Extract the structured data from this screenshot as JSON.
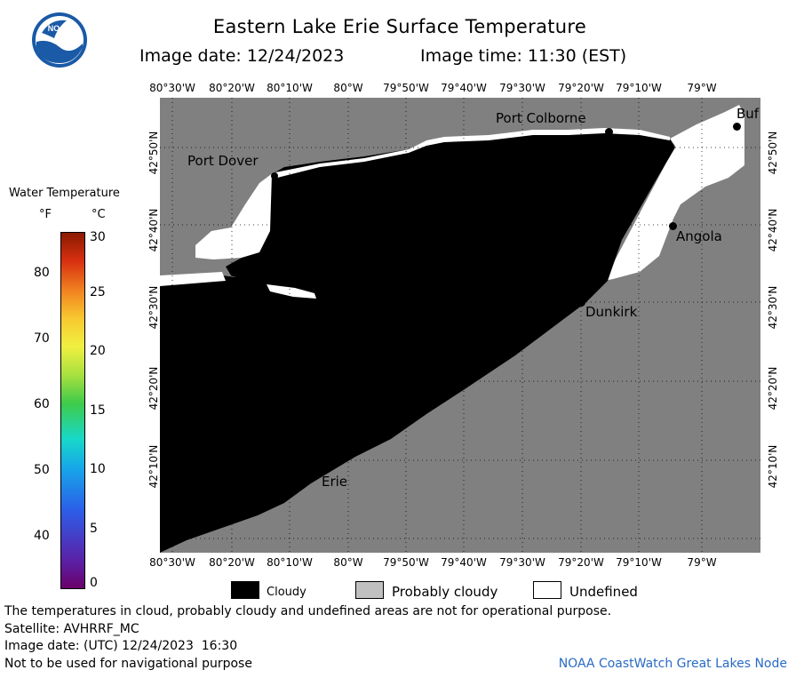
{
  "header": {
    "title": "Eastern Lake Erie Surface Temperature",
    "image_date": "Image date: 12/24/2023",
    "image_time": "Image time: 11:30 (EST)",
    "logo_text": "NOAA"
  },
  "map": {
    "lon_ticks": [
      "80°30'W",
      "80°20'W",
      "80°10'W",
      "80°W",
      "79°50'W",
      "79°40'W",
      "79°30'W",
      "79°20'W",
      "79°10'W",
      "79°W"
    ],
    "lat_ticks": [
      "42°50'N",
      "42°40'N",
      "42°30'N",
      "42°20'N",
      "42°10'N"
    ],
    "cities": {
      "port_dover": "Port Dover",
      "port_colborne": "Port Colborne",
      "buffalo": "Buf",
      "angola": "Angola",
      "dunkirk": "Dunkirk",
      "erie": "Erie"
    },
    "colors": {
      "land": "#808080",
      "cloudy": "#000000",
      "undefined": "#ffffff",
      "grid": "#000000"
    }
  },
  "colorbar": {
    "title": "Water Temperature",
    "unit_f": "°F",
    "unit_c": "°C",
    "f_ticks": [
      "80",
      "70",
      "60",
      "50",
      "40"
    ],
    "c_ticks": [
      "30",
      "25",
      "20",
      "15",
      "10",
      "5",
      "0"
    ]
  },
  "legend": {
    "cloudy": "Cloudy",
    "probably_cloudy": "Probably cloudy",
    "undefined": "Undefined"
  },
  "footer": {
    "disclaimer": "The temperatures in cloud, probably cloudy and undefined areas are not for operational purpose.",
    "satellite": "Satellite: AVHRRF_MC",
    "image_date_utc": "Image date: (UTC) 12/24/2023  16:30",
    "navigation": "Not to be used for navigational purpose",
    "credit": "NOAA CoastWatch Great Lakes Node"
  }
}
